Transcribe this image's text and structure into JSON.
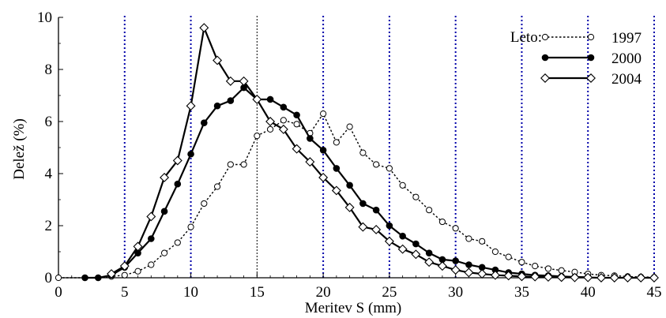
{
  "chart_data": {
    "type": "line",
    "xlabel": "Meritev S (mm)",
    "ylabel": "Delež (%)",
    "xlim": [
      0,
      45
    ],
    "ylim": [
      0,
      10
    ],
    "xticks": [
      0,
      5,
      10,
      15,
      20,
      25,
      30,
      35,
      40,
      45
    ],
    "yticks": [
      0,
      2,
      4,
      6,
      8,
      10
    ],
    "reference_lines_x": [
      5,
      10,
      15,
      20,
      25,
      30,
      35,
      40,
      45
    ],
    "legend": {
      "title": "Leto:",
      "position": "top-right"
    },
    "series": [
      {
        "name": "1997",
        "line_style": "dotted",
        "marker": "open-circle",
        "points": [
          [
            0,
            0
          ],
          [
            2,
            0
          ],
          [
            3,
            0
          ],
          [
            4,
            0.05
          ],
          [
            5,
            0.1
          ],
          [
            6,
            0.25
          ],
          [
            7,
            0.5
          ],
          [
            8,
            0.95
          ],
          [
            9,
            1.35
          ],
          [
            10,
            1.95
          ],
          [
            11,
            2.85
          ],
          [
            12,
            3.5
          ],
          [
            13,
            4.35
          ],
          [
            14,
            4.35
          ],
          [
            15,
            5.45
          ],
          [
            16,
            5.7
          ],
          [
            17,
            6.05
          ],
          [
            18,
            5.9
          ],
          [
            19,
            5.55
          ],
          [
            20,
            6.3
          ],
          [
            21,
            5.2
          ],
          [
            22,
            5.8
          ],
          [
            23,
            4.8
          ],
          [
            24,
            4.35
          ],
          [
            25,
            4.2
          ],
          [
            26,
            3.55
          ],
          [
            27,
            3.1
          ],
          [
            28,
            2.6
          ],
          [
            29,
            2.15
          ],
          [
            30,
            1.9
          ],
          [
            31,
            1.5
          ],
          [
            32,
            1.4
          ],
          [
            33,
            1.0
          ],
          [
            34,
            0.8
          ],
          [
            35,
            0.6
          ],
          [
            36,
            0.45
          ],
          [
            37,
            0.35
          ],
          [
            38,
            0.28
          ],
          [
            39,
            0.22
          ],
          [
            40,
            0.15
          ],
          [
            41,
            0.1
          ],
          [
            42,
            0.08
          ],
          [
            43,
            0.05
          ],
          [
            44,
            0.03
          ],
          [
            45,
            0.02
          ]
        ]
      },
      {
        "name": "2000",
        "line_style": "solid",
        "marker": "filled-circle",
        "points": [
          [
            2,
            0
          ],
          [
            3,
            0
          ],
          [
            4,
            0.1
          ],
          [
            5,
            0.4
          ],
          [
            6,
            0.95
          ],
          [
            7,
            1.5
          ],
          [
            8,
            2.55
          ],
          [
            9,
            3.6
          ],
          [
            10,
            4.75
          ],
          [
            11,
            5.95
          ],
          [
            12,
            6.6
          ],
          [
            13,
            6.8
          ],
          [
            14,
            7.3
          ],
          [
            15,
            6.85
          ],
          [
            16,
            6.85
          ],
          [
            17,
            6.55
          ],
          [
            18,
            6.25
          ],
          [
            19,
            5.35
          ],
          [
            20,
            4.9
          ],
          [
            21,
            4.2
          ],
          [
            22,
            3.55
          ],
          [
            23,
            2.85
          ],
          [
            24,
            2.6
          ],
          [
            25,
            2.0
          ],
          [
            26,
            1.6
          ],
          [
            27,
            1.3
          ],
          [
            28,
            0.95
          ],
          [
            29,
            0.7
          ],
          [
            30,
            0.65
          ],
          [
            31,
            0.5
          ],
          [
            32,
            0.4
          ],
          [
            33,
            0.3
          ],
          [
            34,
            0.2
          ],
          [
            35,
            0.15
          ],
          [
            36,
            0.1
          ],
          [
            37,
            0.08
          ],
          [
            38,
            0.05
          ],
          [
            39,
            0.03
          ],
          [
            40,
            0.02
          ]
        ]
      },
      {
        "name": "2004",
        "line_style": "solid",
        "marker": "open-diamond",
        "points": [
          [
            4,
            0.15
          ],
          [
            5,
            0.45
          ],
          [
            6,
            1.2
          ],
          [
            7,
            2.35
          ],
          [
            8,
            3.85
          ],
          [
            9,
            4.5
          ],
          [
            10,
            6.6
          ],
          [
            11,
            9.6
          ],
          [
            12,
            8.35
          ],
          [
            13,
            7.55
          ],
          [
            14,
            7.55
          ],
          [
            15,
            6.85
          ],
          [
            16,
            6.0
          ],
          [
            17,
            5.7
          ],
          [
            18,
            4.95
          ],
          [
            19,
            4.45
          ],
          [
            20,
            3.85
          ],
          [
            21,
            3.35
          ],
          [
            22,
            2.7
          ],
          [
            23,
            1.95
          ],
          [
            24,
            1.85
          ],
          [
            25,
            1.4
          ],
          [
            26,
            1.1
          ],
          [
            27,
            0.9
          ],
          [
            28,
            0.6
          ],
          [
            29,
            0.45
          ],
          [
            30,
            0.3
          ],
          [
            31,
            0.2
          ],
          [
            32,
            0.15
          ],
          [
            33,
            0.1
          ],
          [
            34,
            0.08
          ],
          [
            35,
            0.05
          ],
          [
            36,
            0.04
          ],
          [
            37,
            0.03
          ],
          [
            38,
            0.02
          ],
          [
            39,
            0.01
          ],
          [
            40,
            0.01
          ],
          [
            41,
            0
          ],
          [
            42,
            0
          ],
          [
            43,
            0
          ],
          [
            44,
            0
          ],
          [
            45,
            0
          ]
        ]
      }
    ]
  }
}
